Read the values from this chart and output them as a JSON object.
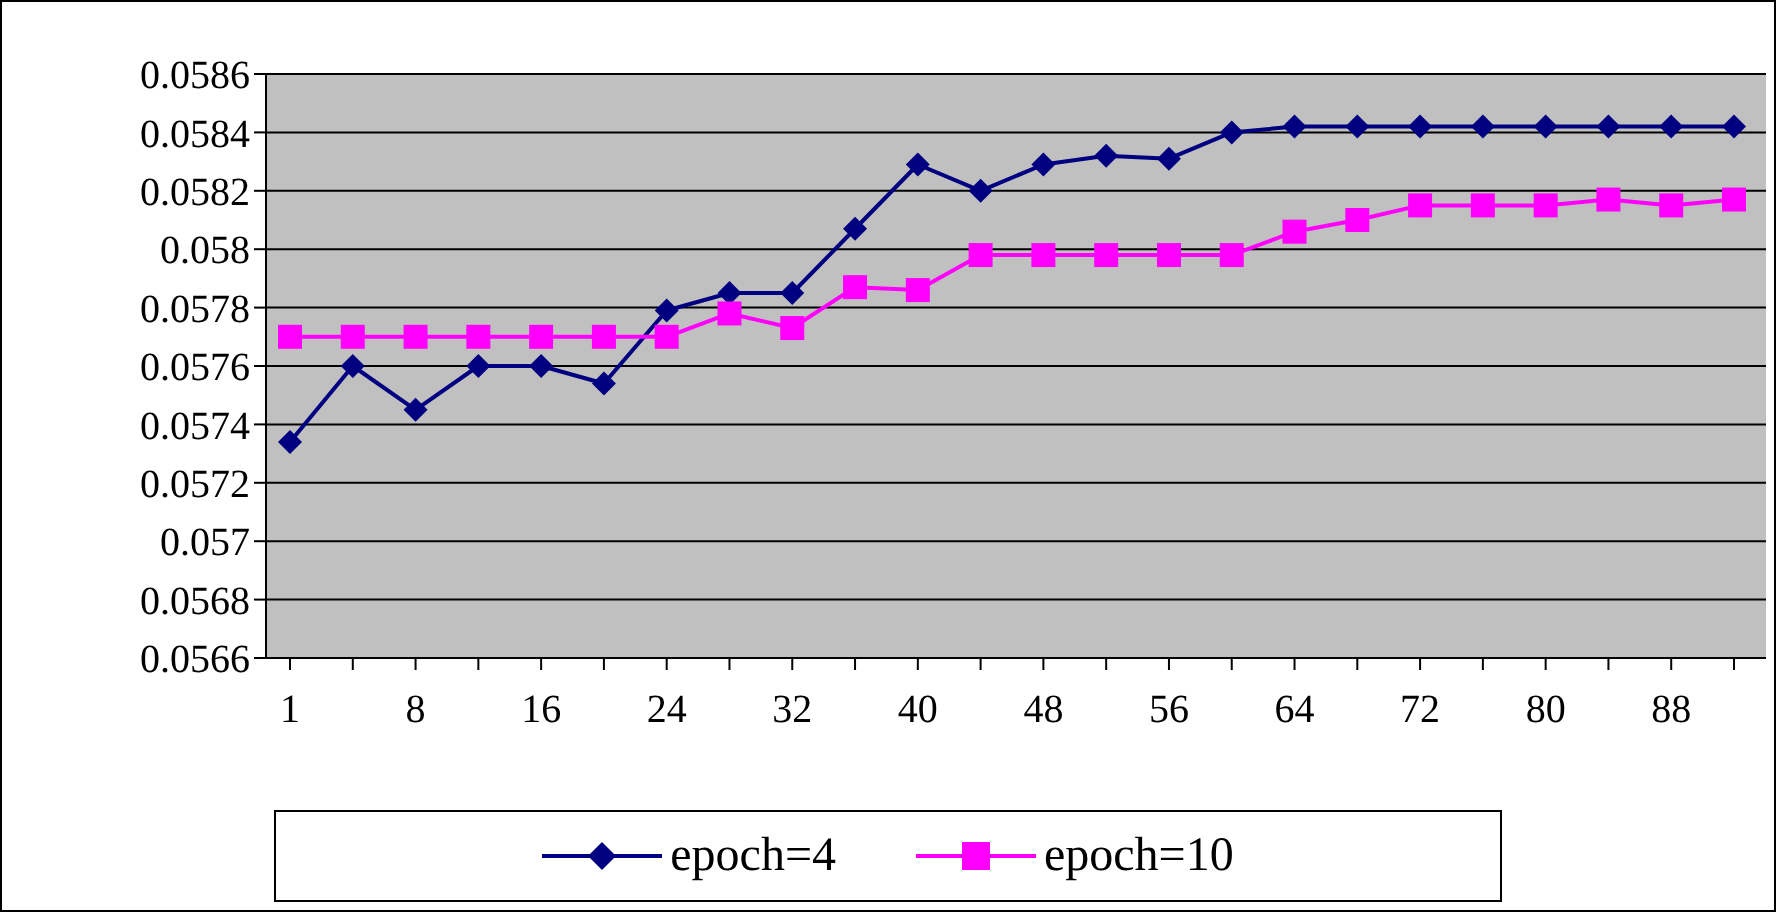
{
  "chart_data": {
    "type": "line",
    "categories": [
      "1",
      null,
      "8",
      null,
      "16",
      null,
      "24",
      null,
      "32",
      null,
      "40",
      null,
      "48",
      null,
      "56",
      null,
      "64",
      null,
      "72",
      null,
      "80",
      null,
      "88",
      null
    ],
    "series": [
      {
        "name": "epoch=4",
        "color": "#000080",
        "marker": "diamond",
        "values": [
          0.05734,
          0.0576,
          0.05745,
          0.0576,
          0.0576,
          0.05754,
          0.05779,
          0.05785,
          0.05785,
          0.05807,
          0.05829,
          0.0582,
          0.05829,
          0.05832,
          0.05831,
          0.0584,
          0.05842,
          0.05842,
          0.05842,
          0.05842,
          0.05842,
          0.05842,
          0.05842,
          0.05842
        ]
      },
      {
        "name": "epoch=10",
        "color": "#ff00ff",
        "marker": "square",
        "values": [
          0.0577,
          0.0577,
          0.0577,
          0.0577,
          0.0577,
          0.0577,
          0.0577,
          0.05778,
          0.05773,
          0.05787,
          0.05786,
          0.05798,
          0.05798,
          0.05798,
          0.05798,
          0.05798,
          0.05806,
          0.0581,
          0.05815,
          0.05815,
          0.05815,
          0.05817,
          0.05815,
          0.05817
        ]
      }
    ],
    "ylim": [
      0.0566,
      0.0586
    ],
    "yticks": [
      0.0566,
      0.0568,
      0.057,
      0.0572,
      0.0574,
      0.0576,
      0.0578,
      0.058,
      0.0582,
      0.0584,
      0.0586
    ],
    "grid": "y",
    "legend": "bottom"
  }
}
